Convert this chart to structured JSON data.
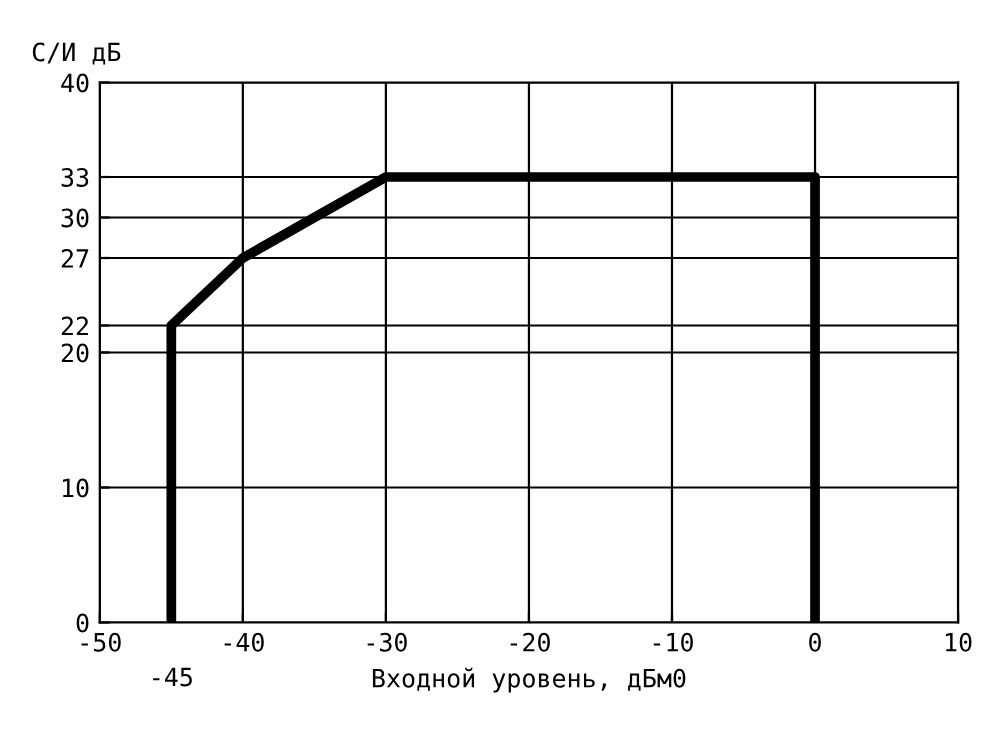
{
  "chart_data": {
    "type": "line",
    "ylabel": "С/И дБ",
    "xlabel": "Входной уровень, дБм0",
    "x": [
      -45,
      -45,
      -40,
      -30,
      0,
      0
    ],
    "series": [
      {
        "color": "#000000",
        "values": [
          0,
          22,
          27,
          33,
          33,
          0
        ]
      }
    ],
    "xlim": [
      -50,
      10
    ],
    "ylim": [
      0,
      40
    ],
    "xticks": [
      -50,
      -40,
      -30,
      -20,
      -10,
      0,
      10
    ],
    "annotations": [
      {
        "text": "-45",
        "x": -45,
        "y": 0
      }
    ],
    "yticks": [
      0,
      10,
      20,
      22,
      27,
      30,
      33,
      40
    ],
    "grid": true,
    "marker": "none",
    "line_style": "solid"
  }
}
